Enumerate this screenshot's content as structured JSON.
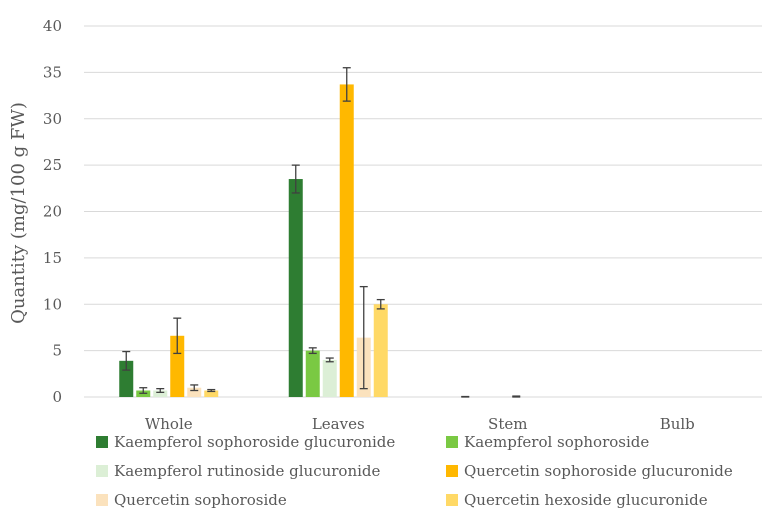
{
  "chart_data": {
    "type": "bar",
    "xlabel": "",
    "ylabel": "Quantity (mg/100 g FW)",
    "ylim": [
      0,
      40
    ],
    "yticks": [
      "0",
      "5",
      "10",
      "15",
      "20",
      "25",
      "30",
      "35",
      "40"
    ],
    "categories": [
      "Whole",
      "Leaves",
      "Stem",
      "Bulb"
    ],
    "grid": true,
    "legend_position": "bottom",
    "series": [
      {
        "name": "Kaempferol sophoroside glucuronide",
        "color": "#2e7d32",
        "values": [
          3.9,
          23.5,
          0.0,
          0.0
        ],
        "errors": [
          1.0,
          1.5,
          0.05,
          0.0
        ]
      },
      {
        "name": "Kaempferol sophoroside",
        "color": "#7ac943",
        "values": [
          0.7,
          5.0,
          0.0,
          0.0
        ],
        "errors": [
          0.3,
          0.3,
          0.0,
          0.0
        ]
      },
      {
        "name": "Kaempferol rutinoside glucuronide",
        "color": "#dcefd6",
        "values": [
          0.7,
          4.0,
          0.0,
          0.0
        ],
        "errors": [
          0.2,
          0.2,
          0.0,
          0.0
        ]
      },
      {
        "name": "Quercetin sophoroside glucuronide",
        "color": "#ffb800",
        "values": [
          6.6,
          33.7,
          0.0,
          0.0
        ],
        "errors": [
          1.9,
          1.8,
          0.1,
          0.0
        ]
      },
      {
        "name": "Quercetin sophoroside",
        "color": "#fbe2bd",
        "values": [
          1.0,
          6.4,
          0.0,
          0.0
        ],
        "errors": [
          0.3,
          5.5,
          0.0,
          0.0
        ]
      },
      {
        "name": "Quercetin hexoside glucuronide",
        "color": "#ffd966",
        "values": [
          0.7,
          10.0,
          0.0,
          0.0
        ],
        "errors": [
          0.1,
          0.5,
          0.0,
          0.0
        ]
      }
    ]
  }
}
